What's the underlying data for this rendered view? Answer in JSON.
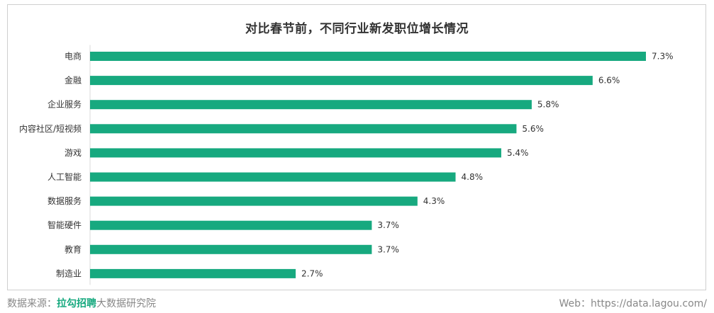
{
  "chart_data": {
    "type": "bar",
    "orientation": "horizontal",
    "title": "对比春节前，不同行业新发职位增长情况",
    "categories": [
      "电商",
      "金融",
      "企业服务",
      "内容社区/短视频",
      "游戏",
      "人工智能",
      "数据服务",
      "智能硬件",
      "教育",
      "制造业"
    ],
    "values": [
      7.3,
      6.6,
      5.8,
      5.6,
      5.4,
      4.8,
      4.3,
      3.7,
      3.7,
      2.7
    ],
    "value_labels": [
      "7.3%",
      "6.6%",
      "5.8%",
      "5.6%",
      "5.4%",
      "4.8%",
      "4.3%",
      "3.7%",
      "3.7%",
      "2.7%"
    ],
    "xlim": [
      0,
      7.3
    ],
    "grid": false,
    "bar_color": "#17a97f"
  },
  "footer": {
    "source_prefix": "数据来源：",
    "source_brand": "拉勾招聘",
    "source_suffix": "大数据研究院",
    "web": "Web：https://data.lagou.com/"
  }
}
